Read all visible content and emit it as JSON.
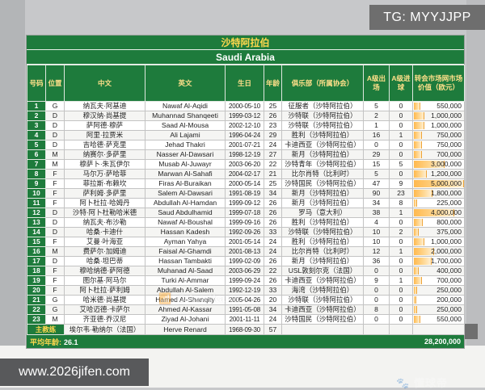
{
  "overlays": {
    "tg_label": "TG: MYYJJPP",
    "site_label": "www.2026jifen.com",
    "watermark_center": "@Aseikana",
    "watermark_brand": "懂球帝"
  },
  "colors": {
    "sheet_green": "#1e7b3c",
    "title_gold": "#ffd84d",
    "databar_orange": "#ffb94e"
  },
  "table": {
    "title_cn": "沙特阿拉伯",
    "title_en": "Saudi Arabia",
    "columns": [
      "号码",
      "位置",
      "中文",
      "英文",
      "生日",
      "年龄",
      "俱乐部（所属协会）",
      "A级出场",
      "A级进球",
      "转会市场网市场价值（欧元）"
    ],
    "max_value": 5000000,
    "players": [
      {
        "no": "1",
        "pos": "G",
        "cn": "纳瓦夫·阿基迪",
        "en": "Nawaf Al-Aqidi",
        "dob": "2000-05-10",
        "age": "25",
        "club": "征服者（沙特阿拉伯）",
        "caps": "5",
        "goals": "0",
        "value": "550,000",
        "v": 550000
      },
      {
        "no": "2",
        "pos": "D",
        "cn": "穆汉纳·尚基提",
        "en": "Muhannad Shanqeeti",
        "dob": "1999-03-12",
        "age": "26",
        "club": "沙特联（沙特阿拉伯）",
        "caps": "2",
        "goals": "0",
        "value": "1,000,000",
        "v": 1000000
      },
      {
        "no": "3",
        "pos": "D",
        "cn": "萨阿德·穆萨",
        "en": "Saad Al-Mousa",
        "dob": "2002-12-10",
        "age": "23",
        "club": "沙特联（沙特阿拉伯）",
        "caps": "1",
        "goals": "0",
        "value": "1,000,000",
        "v": 1000000
      },
      {
        "no": "4",
        "pos": "D",
        "cn": "阿里·拉贾米",
        "en": "Ali Lajami",
        "dob": "1996-04-24",
        "age": "29",
        "club": "胜利（沙特阿拉伯）",
        "caps": "16",
        "goals": "1",
        "value": "750,000",
        "v": 750000
      },
      {
        "no": "5",
        "pos": "D",
        "cn": "吉哈德·萨克里",
        "en": "Jehad Thakri",
        "dob": "2001-07-21",
        "age": "24",
        "club": "卡迪西亚（沙特阿拉伯）",
        "caps": "0",
        "goals": "0",
        "value": "750,000",
        "v": 750000
      },
      {
        "no": "6",
        "pos": "M",
        "cn": "纳赛尔·多萨里",
        "en": "Nasser Al-Dawsari",
        "dob": "1998-12-19",
        "age": "27",
        "club": "新月（沙特阿拉伯）",
        "caps": "29",
        "goals": "0",
        "value": "700,000",
        "v": 700000
      },
      {
        "no": "7",
        "pos": "M",
        "cn": "穆萨卜·朱瓦伊尔",
        "en": "Musab Al-Juwayr",
        "dob": "2003-06-20",
        "age": "22",
        "club": "沙特青年（沙特阿拉伯）",
        "caps": "15",
        "goals": "5",
        "value": "3,000,000",
        "v": 3000000
      },
      {
        "no": "8",
        "pos": "F",
        "cn": "马尔万·萨哈菲",
        "en": "Marwan Al-Sahafi",
        "dob": "2004-02-17",
        "age": "21",
        "club": "比尔肖特（比利时）",
        "caps": "5",
        "goals": "0",
        "value": "1,200,000",
        "v": 1200000
      },
      {
        "no": "9",
        "pos": "F",
        "cn": "菲拉斯·布赖坎",
        "en": "Firas Al-Buraikan",
        "dob": "2000-05-14",
        "age": "25",
        "club": "沙特国民（沙特阿拉伯）",
        "caps": "47",
        "goals": "9",
        "value": "5,000,000",
        "v": 5000000
      },
      {
        "no": "10",
        "pos": "F",
        "cn": "萨利姆·多萨里",
        "en": "Salem Al-Dawsari",
        "dob": "1991-08-19",
        "age": "34",
        "club": "新月（沙特阿拉伯）",
        "caps": "90",
        "goals": "23",
        "value": "1,800,000",
        "v": 1800000
      },
      {
        "no": "11",
        "pos": "F",
        "cn": "阿卜杜拉·哈姆丹",
        "en": "Abdullah Al-Hamdan",
        "dob": "1999-09-12",
        "age": "26",
        "club": "新月（沙特阿拉伯）",
        "caps": "34",
        "goals": "8",
        "value": "225,000",
        "v": 225000
      },
      {
        "no": "12",
        "pos": "D",
        "cn": "沙特·阿卜杜勒哈米德",
        "en": "Saud Abdulhamid",
        "dob": "1999-07-18",
        "age": "26",
        "club": "罗马（意大利）",
        "caps": "38",
        "goals": "1",
        "value": "4,000,000",
        "v": 4000000
      },
      {
        "no": "13",
        "pos": "D",
        "cn": "纳瓦夫·布沙勒",
        "en": "Nawaf Al-Boushal",
        "dob": "1999-09-16",
        "age": "26",
        "club": "胜利（沙特阿拉伯）",
        "caps": "4",
        "goals": "0",
        "value": "800,000",
        "v": 800000
      },
      {
        "no": "14",
        "pos": "D",
        "cn": "哈桑·卡迪什",
        "en": "Hassan Kadesh",
        "dob": "1992-09-26",
        "age": "33",
        "club": "沙特联（沙特阿拉伯）",
        "caps": "10",
        "goals": "2",
        "value": "375,000",
        "v": 375000
      },
      {
        "no": "15",
        "pos": "F",
        "cn": "艾曼·叶海亚",
        "en": "Ayman Yahya",
        "dob": "2001-05-14",
        "age": "24",
        "club": "胜利（沙特阿拉伯）",
        "caps": "10",
        "goals": "0",
        "value": "1,000,000",
        "v": 1000000
      },
      {
        "no": "16",
        "pos": "M",
        "cn": "费萨尔·加姆迪",
        "en": "Faisal Al-Ghamdi",
        "dob": "2001-08-13",
        "age": "24",
        "club": "比尔肖特（比利时）",
        "caps": "12",
        "goals": "1",
        "value": "2,000,000",
        "v": 2000000
      },
      {
        "no": "17",
        "pos": "D",
        "cn": "哈桑·坦巴蒂",
        "en": "Hassan Tambakti",
        "dob": "1999-02-09",
        "age": "26",
        "club": "新月（沙特阿拉伯）",
        "caps": "36",
        "goals": "0",
        "value": "1,700,000",
        "v": 1700000
      },
      {
        "no": "18",
        "pos": "F",
        "cn": "穆哈纳德·萨阿德",
        "en": "Muhanad Al-Saad",
        "dob": "2003-06-29",
        "age": "22",
        "club": "USL敦刻尔克（法国）",
        "caps": "0",
        "goals": "0",
        "value": "400,000",
        "v": 400000
      },
      {
        "no": "19",
        "pos": "F",
        "cn": "图尔基·阿马尔",
        "en": "Turki Al-Ammar",
        "dob": "1999-09-24",
        "age": "26",
        "club": "卡迪西亚（沙特阿拉伯）",
        "caps": "9",
        "goals": "1",
        "value": "700,000",
        "v": 700000
      },
      {
        "no": "20",
        "pos": "F",
        "cn": "阿卜杜拉·萨利姆",
        "en": "Abdullah Al-Salem",
        "dob": "1992-12-19",
        "age": "33",
        "club": "海湾（沙特阿拉伯）",
        "caps": "0",
        "goals": "0",
        "value": "250,000",
        "v": 250000
      },
      {
        "no": "21",
        "pos": "G",
        "cn": "哈米德·尚基提",
        "en": "Hamed Al-Shanqity",
        "dob": "2005-04-26",
        "age": "20",
        "club": "沙特联（沙特阿拉伯）",
        "caps": "0",
        "goals": "0",
        "value": "200,000",
        "v": 200000
      },
      {
        "no": "22",
        "pos": "G",
        "cn": "艾哈迈德·卡萨尔",
        "en": "Ahmed Al-Kassar",
        "dob": "1991-05-08",
        "age": "34",
        "club": "卡迪西亚（沙特阿拉伯）",
        "caps": "8",
        "goals": "0",
        "value": "250,000",
        "v": 250000
      },
      {
        "no": "23",
        "pos": "M",
        "cn": "齐亚德·乔汉尼",
        "en": "Ziyad Al-Johani",
        "dob": "2001-11-11",
        "age": "24",
        "club": "沙特国民（沙特阿拉伯）",
        "caps": "0",
        "goals": "0",
        "value": "550,000",
        "v": 550000
      }
    ],
    "coach": {
      "label": "主教练",
      "cn": "埃尔韦·勒纳尔（法国）",
      "en": "Herve Renard",
      "dob": "1968-09-30",
      "age": "57"
    },
    "footer": {
      "avg_label": "平均年龄:",
      "avg_value": "26.1",
      "total_value": "28,200,000"
    }
  }
}
